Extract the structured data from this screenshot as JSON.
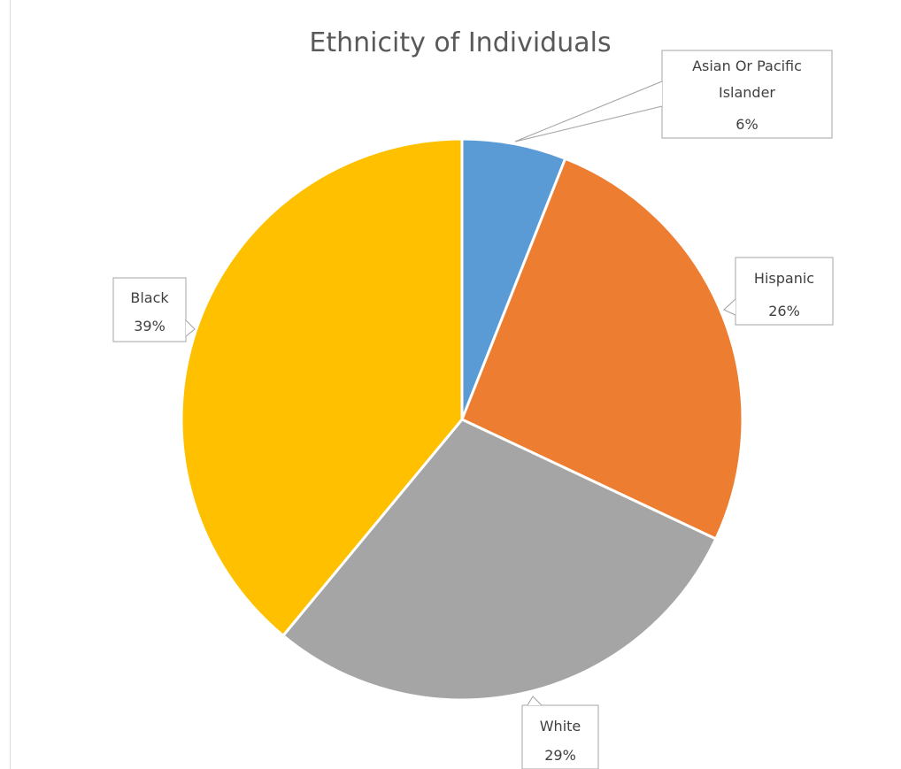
{
  "chart_data": {
    "type": "pie",
    "title": "Ethnicity of Individuals",
    "categories": [
      "Asian Or Pacific Islander",
      "Hispanic",
      "White",
      "Black"
    ],
    "values": [
      6,
      26,
      29,
      39
    ],
    "labels": [
      {
        "lines": [
          "Asian Or Pacific",
          "Islander"
        ],
        "percent": "6%"
      },
      {
        "lines": [
          "Hispanic"
        ],
        "percent": "26%"
      },
      {
        "lines": [
          "White"
        ],
        "percent": "29%"
      },
      {
        "lines": [
          "Black"
        ],
        "percent": "39%"
      }
    ],
    "colors": [
      "#5b9bd5",
      "#ed7d31",
      "#a5a5a5",
      "#ffc000"
    ],
    "start_angle": "12 o'clock",
    "direction": "clockwise",
    "legend": "none",
    "data_labels": "callouts"
  }
}
